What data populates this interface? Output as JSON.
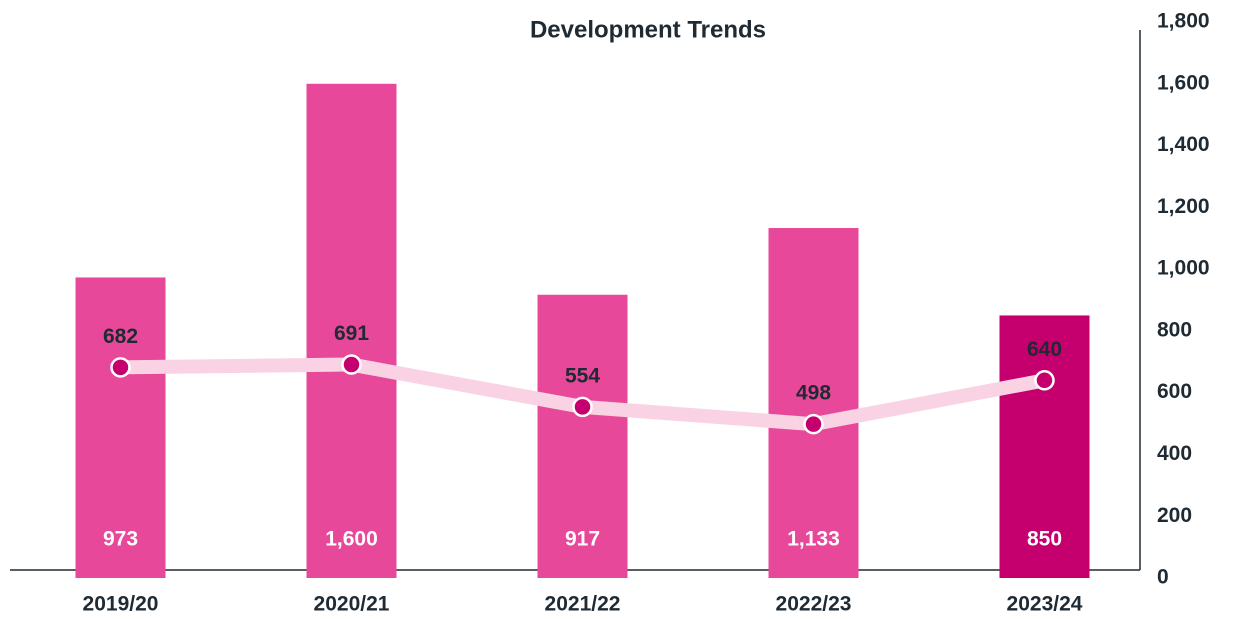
{
  "chart_data": {
    "type": "bar_line",
    "title": "Development Trends",
    "categories": [
      "2019/20",
      "2020/21",
      "2021/22",
      "2022/23",
      "2023/24"
    ],
    "bars": {
      "values": [
        973,
        1600,
        917,
        1133,
        850
      ],
      "value_labels": [
        "973",
        "1,600",
        "917",
        "1,133",
        "850"
      ],
      "colors": [
        "#e8489a",
        "#e8489a",
        "#e8489a",
        "#e8489a",
        "#c5006e"
      ]
    },
    "line": {
      "values": [
        682,
        691,
        554,
        498,
        640
      ],
      "color": "#f9d3e3",
      "marker_color": "#c5006e"
    },
    "ylim": [
      0,
      1800
    ],
    "yticks": [
      0,
      200,
      400,
      600,
      800,
      {
        "value": 1000,
        "label": "1,000"
      },
      {
        "value": 1200,
        "label": "1,200"
      },
      {
        "value": 1400,
        "label": "1,400"
      },
      {
        "value": 1600,
        "label": "1,600"
      },
      {
        "value": 1800,
        "label": "1,800"
      }
    ],
    "axis_side": "right"
  }
}
